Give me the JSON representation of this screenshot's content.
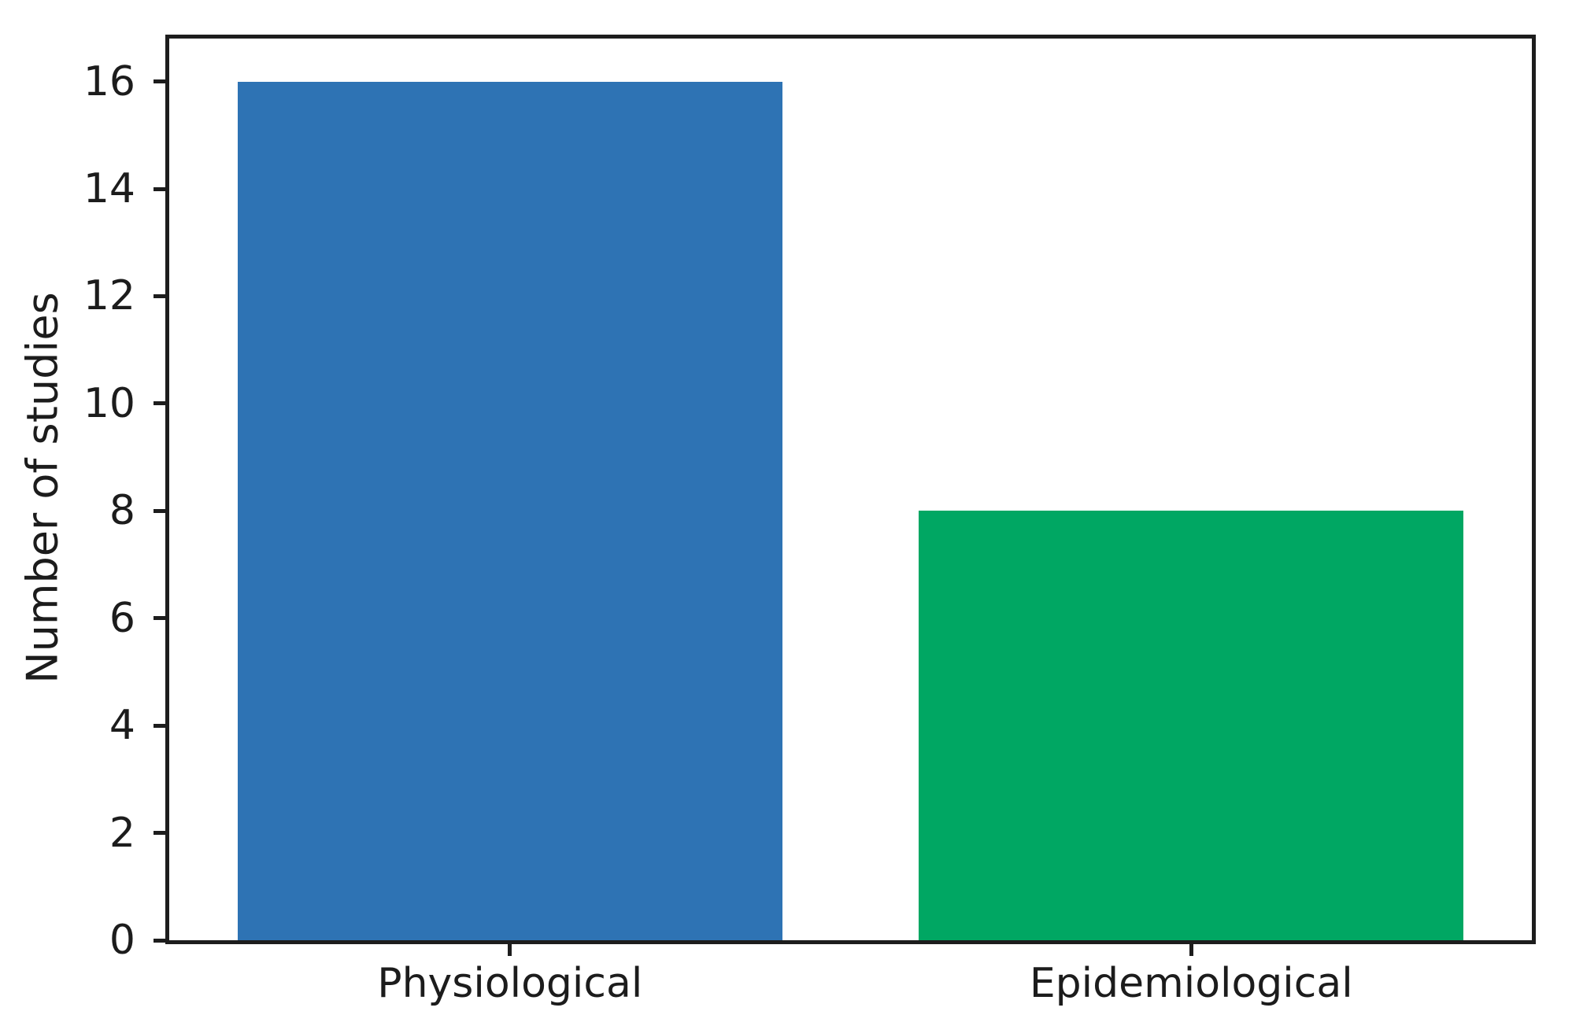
{
  "chart_data": {
    "type": "bar",
    "title": "",
    "xlabel": "",
    "ylabel": "Number of studies",
    "categories": [
      "Physiological",
      "Epidemiological"
    ],
    "values": [
      16,
      8
    ],
    "bar_colors": [
      "#2e73b4",
      "#00a763"
    ],
    "yticks": [
      0,
      2,
      4,
      6,
      8,
      10,
      12,
      14,
      16
    ],
    "ylim": [
      0,
      16.8
    ],
    "xlim": [
      -0.5,
      1.5
    ],
    "bar_width": 0.8,
    "grid": false,
    "legend": "none",
    "axis_color": "#1d1d1d",
    "text_color": "#1c1c1c",
    "background_color": "#ffffff"
  }
}
